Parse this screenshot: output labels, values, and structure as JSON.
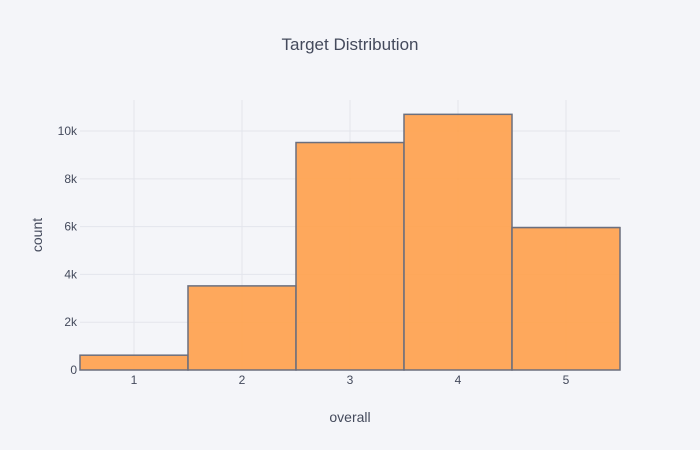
{
  "chart_data": {
    "type": "bar",
    "title": "Target Distribution",
    "xlabel": "overall",
    "ylabel": "count",
    "categories": [
      "1",
      "2",
      "3",
      "4",
      "5"
    ],
    "values": [
      620,
      3520,
      9520,
      10700,
      5960
    ],
    "ylim": [
      0,
      11300
    ],
    "y_ticks": [
      0,
      2000,
      4000,
      6000,
      8000,
      10000
    ],
    "y_tick_labels": [
      "0",
      "2k",
      "4k",
      "6k",
      "8k",
      "10k"
    ],
    "grid": true,
    "bar_color": "#ffa04a",
    "bar_border_color": "#6b6f7e",
    "bar_opacity": 0.9
  }
}
